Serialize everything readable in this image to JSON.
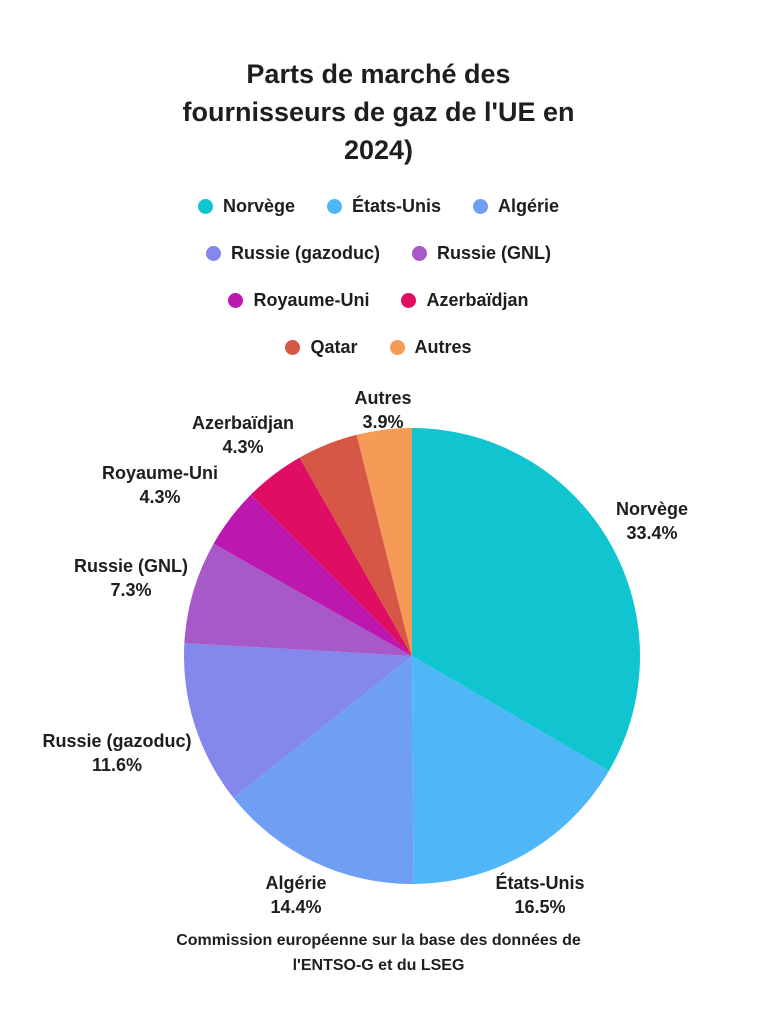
{
  "title": {
    "line1": "Parts de marché des",
    "line2": "fournisseurs de gaz de l'UE en",
    "line3": "2024)"
  },
  "footer": {
    "line1": "Commission européenne sur la base des données de",
    "line2": "l'ENTSO-G et du LSEG"
  },
  "colors": {
    "text": "#1e1e1e",
    "background": "#ffffff"
  },
  "chart_data": {
    "type": "pie",
    "title": "Parts de marché des fournisseurs de gaz de l'UE en 2024)",
    "source_note": "Commission européenne sur la base des données de l'ENTSO-G et du LSEG",
    "categories": [
      "Norvège",
      "États-Unis",
      "Algérie",
      "Russie (gazoduc)",
      "Russie (GNL)",
      "Royaume-Uni",
      "Azerbaïdjan",
      "Qatar",
      "Autres"
    ],
    "values": [
      33.4,
      16.5,
      14.4,
      11.6,
      7.3,
      4.3,
      4.3,
      4.3,
      3.9
    ],
    "value_labels": [
      "33.4%",
      "16.5%",
      "14.4%",
      "11.6%",
      "7.3%",
      "4.3%",
      "4.3%",
      null,
      "3.9%"
    ],
    "colors": [
      "#10c5cf",
      "#4fb7f8",
      "#6f9ff3",
      "#8487eb",
      "#a659c7",
      "#bc17af",
      "#e00e63",
      "#d65745",
      "#f59b55"
    ],
    "start_angle_deg": 0,
    "direction": "clockwise",
    "legend_position": "top",
    "legend_rows": [
      [
        0,
        1,
        2
      ],
      [
        3,
        4
      ],
      [
        5,
        6
      ],
      [
        7,
        8
      ]
    ]
  }
}
